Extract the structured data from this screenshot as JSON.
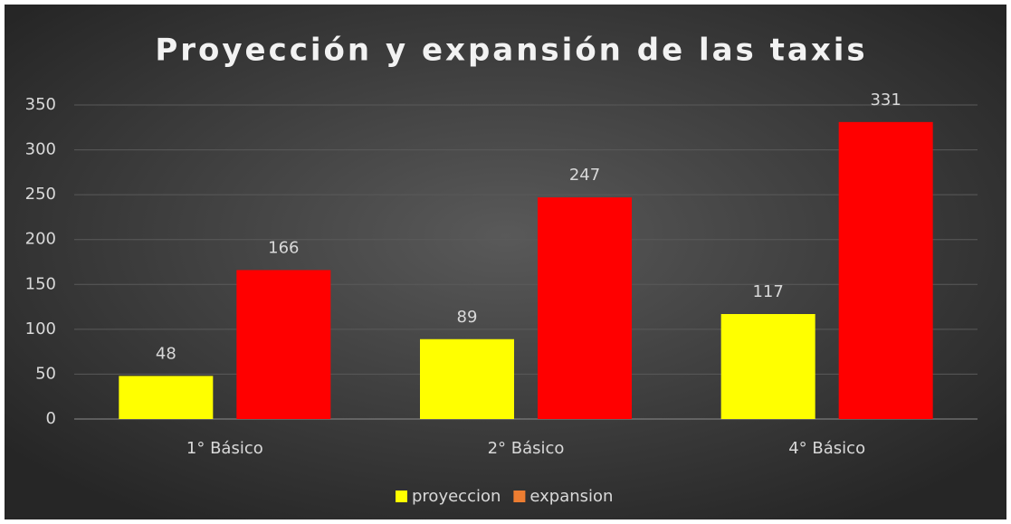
{
  "chart_data": {
    "type": "bar",
    "title": "Proyección y expansión de las taxis",
    "categories": [
      "1° Básico",
      "2° Básico",
      "4° Básico"
    ],
    "series": [
      {
        "name": "proyeccion",
        "color": "#ffff00",
        "legend_color": "#ffff00",
        "values": [
          48,
          89,
          117
        ]
      },
      {
        "name": "expansion",
        "color": "#ff0000",
        "legend_color": "#ed7d31",
        "values": [
          166,
          247,
          331
        ]
      }
    ],
    "ylim": [
      0,
      350
    ],
    "yticks": [
      0,
      50,
      100,
      150,
      200,
      250,
      300,
      350
    ],
    "grid": true,
    "legend": "bottom"
  }
}
